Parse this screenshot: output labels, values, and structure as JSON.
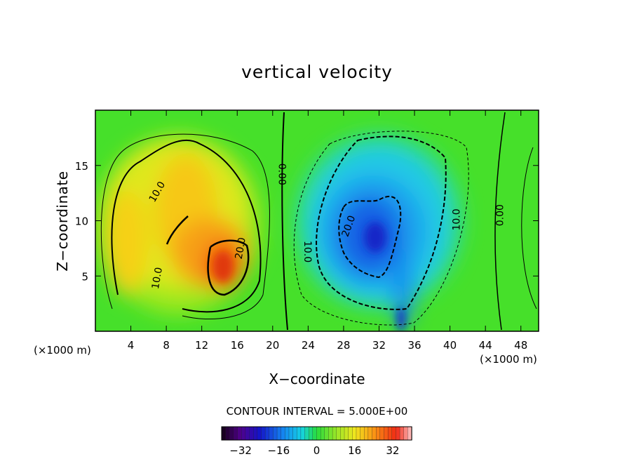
{
  "chart_data": {
    "type": "heatmap",
    "title": "vertical velocity",
    "xlabel": "X−coordinate",
    "ylabel": "Z−coordinate",
    "x_unit_left": "(×1000 m)",
    "x_unit_right": "(×1000 m)",
    "xlim": [
      0,
      50
    ],
    "ylim": [
      0,
      20
    ],
    "xticks": [
      4,
      8,
      12,
      16,
      20,
      24,
      28,
      32,
      36,
      40,
      44,
      48
    ],
    "yticks": [
      5,
      10,
      15
    ],
    "contour_interval_label": "CONTOUR INTERVAL = 5.000E+00",
    "contour_labels": [
      {
        "text": "10.0",
        "x": 7.0,
        "y": 12.6,
        "angle": -60
      },
      {
        "text": "10.0",
        "x": 7.0,
        "y": 4.8,
        "angle": -80
      },
      {
        "text": "20.0",
        "x": 16.4,
        "y": 7.5,
        "angle": -80
      },
      {
        "text": "0.00",
        "x": 21.0,
        "y": 14.2,
        "angle": 90
      },
      {
        "text": "20.0",
        "x": 28.6,
        "y": 9.5,
        "angle": -70
      },
      {
        "text": "10.0",
        "x": 23.9,
        "y": 7.2,
        "angle": 90
      },
      {
        "text": "10.0",
        "x": 40.8,
        "y": 10.1,
        "angle": -90
      },
      {
        "text": "0.00",
        "x": 45.7,
        "y": 10.5,
        "angle": -90
      }
    ],
    "field_features": [
      {
        "kind": "updraft_max",
        "x": 14.5,
        "y": 6.0,
        "peak": 35
      },
      {
        "kind": "updraft",
        "x": 10.5,
        "y": 11.0,
        "peak": 20
      },
      {
        "kind": "updraft",
        "x": 4.5,
        "y": 9.0,
        "peak": 14
      },
      {
        "kind": "downdraft_min",
        "x": 31.5,
        "y": 8.5,
        "peak": -31
      },
      {
        "kind": "downdraft",
        "x": 33.5,
        "y": 13.0,
        "peak": -20
      }
    ],
    "colorbar": {
      "min": -40,
      "max": 40,
      "tick_values": [
        -32,
        -16,
        0,
        16,
        32
      ],
      "tick_labels": [
        "−32",
        "−16",
        "0",
        "16",
        "32"
      ]
    }
  }
}
